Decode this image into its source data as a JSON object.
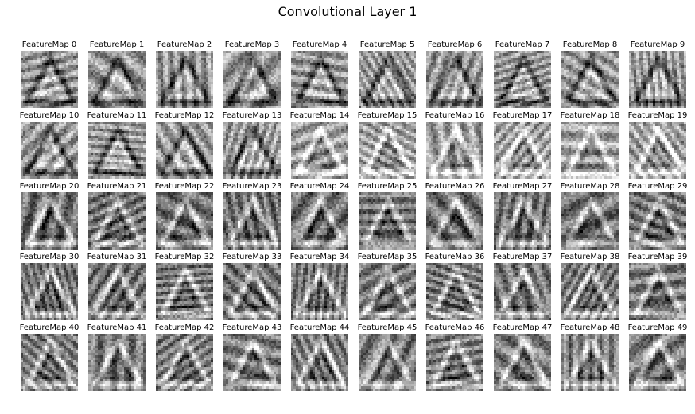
{
  "figure": {
    "title": "Convolutional Layer 1"
  },
  "feature_maps": [
    {
      "label": "FeatureMap 0"
    },
    {
      "label": "FeatureMap 1"
    },
    {
      "label": "FeatureMap 2"
    },
    {
      "label": "FeatureMap 3"
    },
    {
      "label": "FeatureMap 4"
    },
    {
      "label": "FeatureMap 5"
    },
    {
      "label": "FeatureMap 6"
    },
    {
      "label": "FeatureMap 7"
    },
    {
      "label": "FeatureMap 8"
    },
    {
      "label": "FeatureMap 9"
    },
    {
      "label": "FeatureMap 10"
    },
    {
      "label": "FeatureMap 11"
    },
    {
      "label": "FeatureMap 12"
    },
    {
      "label": "FeatureMap 13"
    },
    {
      "label": "FeatureMap 14"
    },
    {
      "label": "FeatureMap 15"
    },
    {
      "label": "FeatureMap 16"
    },
    {
      "label": "FeatureMap 17"
    },
    {
      "label": "FeatureMap 18"
    },
    {
      "label": "FeatureMap 19"
    },
    {
      "label": "FeatureMap 20"
    },
    {
      "label": "FeatureMap 21"
    },
    {
      "label": "FeatureMap 22"
    },
    {
      "label": "FeatureMap 23"
    },
    {
      "label": "FeatureMap 24"
    },
    {
      "label": "FeatureMap 25"
    },
    {
      "label": "FeatureMap 26"
    },
    {
      "label": "FeatureMap 27"
    },
    {
      "label": "FeatureMap 28"
    },
    {
      "label": "FeatureMap 29"
    },
    {
      "label": "FeatureMap 30"
    },
    {
      "label": "FeatureMap 31"
    },
    {
      "label": "FeatureMap 32"
    },
    {
      "label": "FeatureMap 33"
    },
    {
      "label": "FeatureMap 34"
    },
    {
      "label": "FeatureMap 35"
    },
    {
      "label": "FeatureMap 36"
    },
    {
      "label": "FeatureMap 37"
    },
    {
      "label": "FeatureMap 38"
    },
    {
      "label": "FeatureMap 39"
    },
    {
      "label": "FeatureMap 40"
    },
    {
      "label": "FeatureMap 41"
    },
    {
      "label": "FeatureMap 42"
    },
    {
      "label": "FeatureMap 43"
    },
    {
      "label": "FeatureMap 44"
    },
    {
      "label": "FeatureMap 45"
    },
    {
      "label": "FeatureMap 46"
    },
    {
      "label": "FeatureMap 47"
    },
    {
      "label": "FeatureMap 48"
    },
    {
      "label": "FeatureMap 49"
    }
  ],
  "colormap": "gray"
}
